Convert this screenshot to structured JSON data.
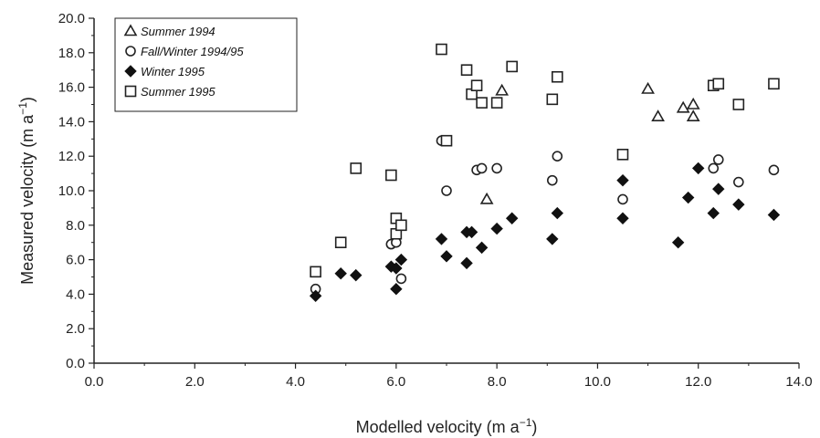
{
  "chart_data": {
    "type": "scatter",
    "xlabel": "Modelled velocity (m a",
    "xlabel_sup": "−1",
    "xlabel_end": ")",
    "ylabel": "Measured velocity (m a",
    "ylabel_sup": "−1",
    "ylabel_end": ")",
    "xlim": [
      0,
      14
    ],
    "ylim": [
      0,
      20
    ],
    "x_ticks": [
      "0.0",
      "2.0",
      "4.0",
      "6.0",
      "8.0",
      "10.0",
      "12.0",
      "14.0"
    ],
    "y_ticks": [
      "0.0",
      "2.0",
      "4.0",
      "6.0",
      "8.0",
      "10.0",
      "12.0",
      "14.0",
      "16.0",
      "18.0",
      "20.0"
    ],
    "grid": false,
    "legend_position": "top-left",
    "series": [
      {
        "name": "Summer 1994",
        "marker": "triangle-open",
        "points": [
          [
            7.8,
            9.5
          ],
          [
            8.1,
            15.8
          ],
          [
            11.0,
            15.9
          ],
          [
            11.2,
            14.3
          ],
          [
            11.7,
            14.8
          ],
          [
            11.9,
            15.0
          ],
          [
            11.9,
            14.3
          ]
        ]
      },
      {
        "name": "Fall/Winter 1994/95",
        "marker": "circle-open",
        "points": [
          [
            4.4,
            4.3
          ],
          [
            5.9,
            6.9
          ],
          [
            6.0,
            7.0
          ],
          [
            6.1,
            4.9
          ],
          [
            6.9,
            12.9
          ],
          [
            7.0,
            10.0
          ],
          [
            7.6,
            11.2
          ],
          [
            7.7,
            11.3
          ],
          [
            8.0,
            11.3
          ],
          [
            9.1,
            10.6
          ],
          [
            9.2,
            12.0
          ],
          [
            10.5,
            9.5
          ],
          [
            12.3,
            11.3
          ],
          [
            12.4,
            11.8
          ],
          [
            12.8,
            10.5
          ],
          [
            13.5,
            11.2
          ]
        ]
      },
      {
        "name": "Winter 1995",
        "marker": "diamond-filled",
        "points": [
          [
            4.4,
            3.9
          ],
          [
            4.9,
            5.2
          ],
          [
            5.2,
            5.1
          ],
          [
            5.9,
            5.6
          ],
          [
            6.0,
            4.3
          ],
          [
            6.0,
            5.5
          ],
          [
            6.1,
            6.0
          ],
          [
            6.9,
            7.2
          ],
          [
            7.0,
            6.2
          ],
          [
            7.4,
            5.8
          ],
          [
            7.4,
            7.6
          ],
          [
            7.5,
            7.6
          ],
          [
            7.7,
            6.7
          ],
          [
            8.0,
            7.8
          ],
          [
            8.3,
            8.4
          ],
          [
            9.1,
            7.2
          ],
          [
            9.2,
            8.7
          ],
          [
            10.5,
            8.4
          ],
          [
            10.5,
            10.6
          ],
          [
            11.6,
            7.0
          ],
          [
            11.8,
            9.6
          ],
          [
            12.0,
            11.3
          ],
          [
            12.3,
            8.7
          ],
          [
            12.4,
            10.1
          ],
          [
            12.8,
            9.2
          ],
          [
            13.5,
            8.6
          ]
        ]
      },
      {
        "name": "Summer 1995",
        "marker": "square-open",
        "points": [
          [
            4.4,
            5.3
          ],
          [
            4.9,
            7.0
          ],
          [
            5.2,
            11.3
          ],
          [
            5.9,
            10.9
          ],
          [
            6.0,
            8.4
          ],
          [
            6.0,
            7.5
          ],
          [
            6.1,
            8.0
          ],
          [
            6.9,
            18.2
          ],
          [
            7.0,
            12.9
          ],
          [
            7.4,
            17.0
          ],
          [
            7.5,
            15.6
          ],
          [
            7.6,
            16.1
          ],
          [
            7.7,
            15.1
          ],
          [
            8.0,
            15.1
          ],
          [
            8.3,
            17.2
          ],
          [
            9.1,
            15.3
          ],
          [
            9.2,
            16.6
          ],
          [
            10.5,
            12.1
          ],
          [
            12.3,
            16.1
          ],
          [
            12.4,
            16.2
          ],
          [
            12.8,
            15.0
          ],
          [
            13.5,
            16.2
          ]
        ]
      }
    ]
  }
}
